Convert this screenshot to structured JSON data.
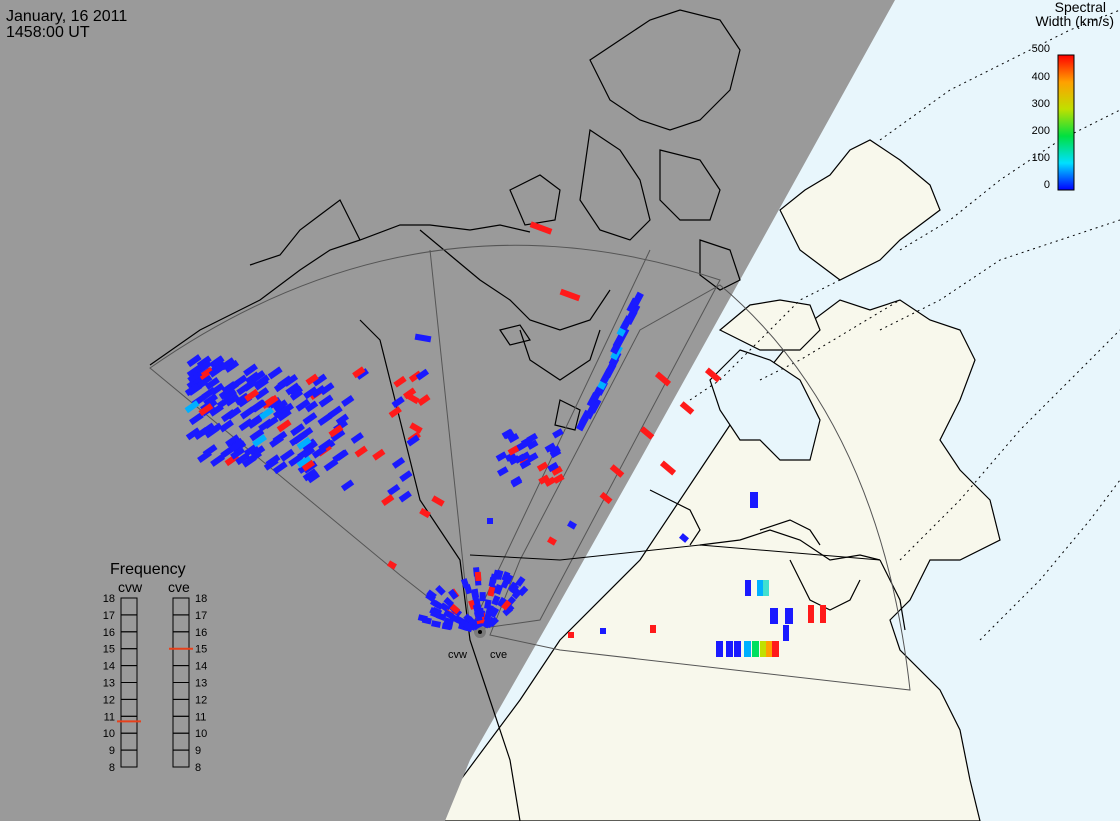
{
  "header": {
    "date": "January, 16 2011",
    "time": "1458:00 UT"
  },
  "colorbar": {
    "title_line1": "Spectral",
    "title_line2": "Width (km/s)",
    "ticks": [
      "500",
      "400",
      "300",
      "200",
      "100",
      "0"
    ],
    "min": 0,
    "max": 500
  },
  "radars": {
    "west_label": "cvw",
    "east_label": "cve"
  },
  "frequency_panel": {
    "title": "Frequency",
    "cvw_label": "cvw",
    "cve_label": "cve",
    "ticks": [
      "18",
      "17",
      "16",
      "15",
      "14",
      "13",
      "12",
      "11",
      "10",
      "9",
      "8"
    ],
    "cvw_value": 10.7,
    "cve_value": 15.0,
    "marker_color": "#e8401a"
  },
  "colors": {
    "night_shade": "#9a9a9a",
    "day_land": "#f8f8ec",
    "ocean": "#e8f6fc",
    "coast": "#000000",
    "fov_outline": "#555555"
  }
}
